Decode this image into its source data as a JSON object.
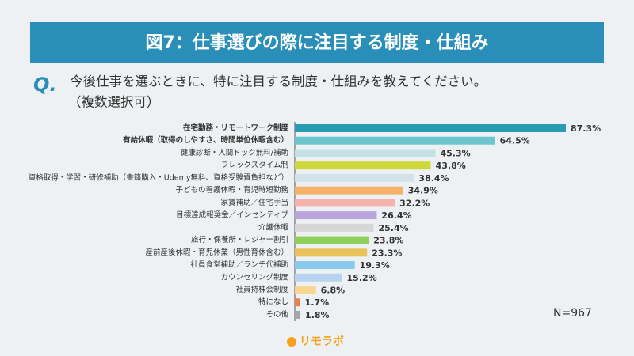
{
  "chart_data": {
    "type": "bar",
    "title": "図7：仕事選びの際に注目する制度・仕組み",
    "question_mark": "Q.",
    "question": "今後仕事を選ぶときに、特に注目する制度・仕組みを教えてください。",
    "question_note": "（複数選択可）",
    "sample_size": "N=967",
    "logo": "リモラボ",
    "categories": [
      "在宅勤務・リモートワーク制度",
      "有給休暇（取得のしやすさ、時間単位休暇含む）",
      "健康診断・人間ドック無料/補助",
      "フレックスタイム制",
      "資格取得・学習・研修補助（書籍購入・Udemy無料、資格受験費負担など）",
      "子どもの看護休暇・育児時短勤務",
      "家賃補助／住宅手当",
      "目標達成報奨金／インセンティブ",
      "介護休暇",
      "旅行・保養所・レジャー割引",
      "産前産後休暇・育児休業（男性育休含む）",
      "社員食堂補助／ランチ代補助",
      "カウンセリング制度",
      "社員持株会制度",
      "特になし",
      "その他"
    ],
    "values": [
      87.3,
      64.5,
      45.3,
      43.8,
      38.4,
      34.9,
      32.2,
      26.4,
      25.4,
      23.8,
      23.3,
      19.3,
      15.2,
      6.8,
      1.7,
      1.8
    ],
    "value_labels": [
      "87.3%",
      "64.5%",
      "45.3%",
      "43.8%",
      "38.4%",
      "34.9%",
      "32.2%",
      "26.4%",
      "25.4%",
      "23.8%",
      "23.3%",
      "19.3%",
      "15.2%",
      "6.8%",
      "1.7%",
      "1.8%"
    ],
    "colors": [
      "#2a9bb5",
      "#6cc6d0",
      "#c4e1e4",
      "#cfd83a",
      "#d3e3ea",
      "#f4b26a",
      "#f6b3ae",
      "#b9a4dc",
      "#d6d6d6",
      "#8fd15a",
      "#e8c35c",
      "#88c9ec",
      "#b6d3ef",
      "#f9d590",
      "#e8824c",
      "#a6a6a6"
    ]
  }
}
